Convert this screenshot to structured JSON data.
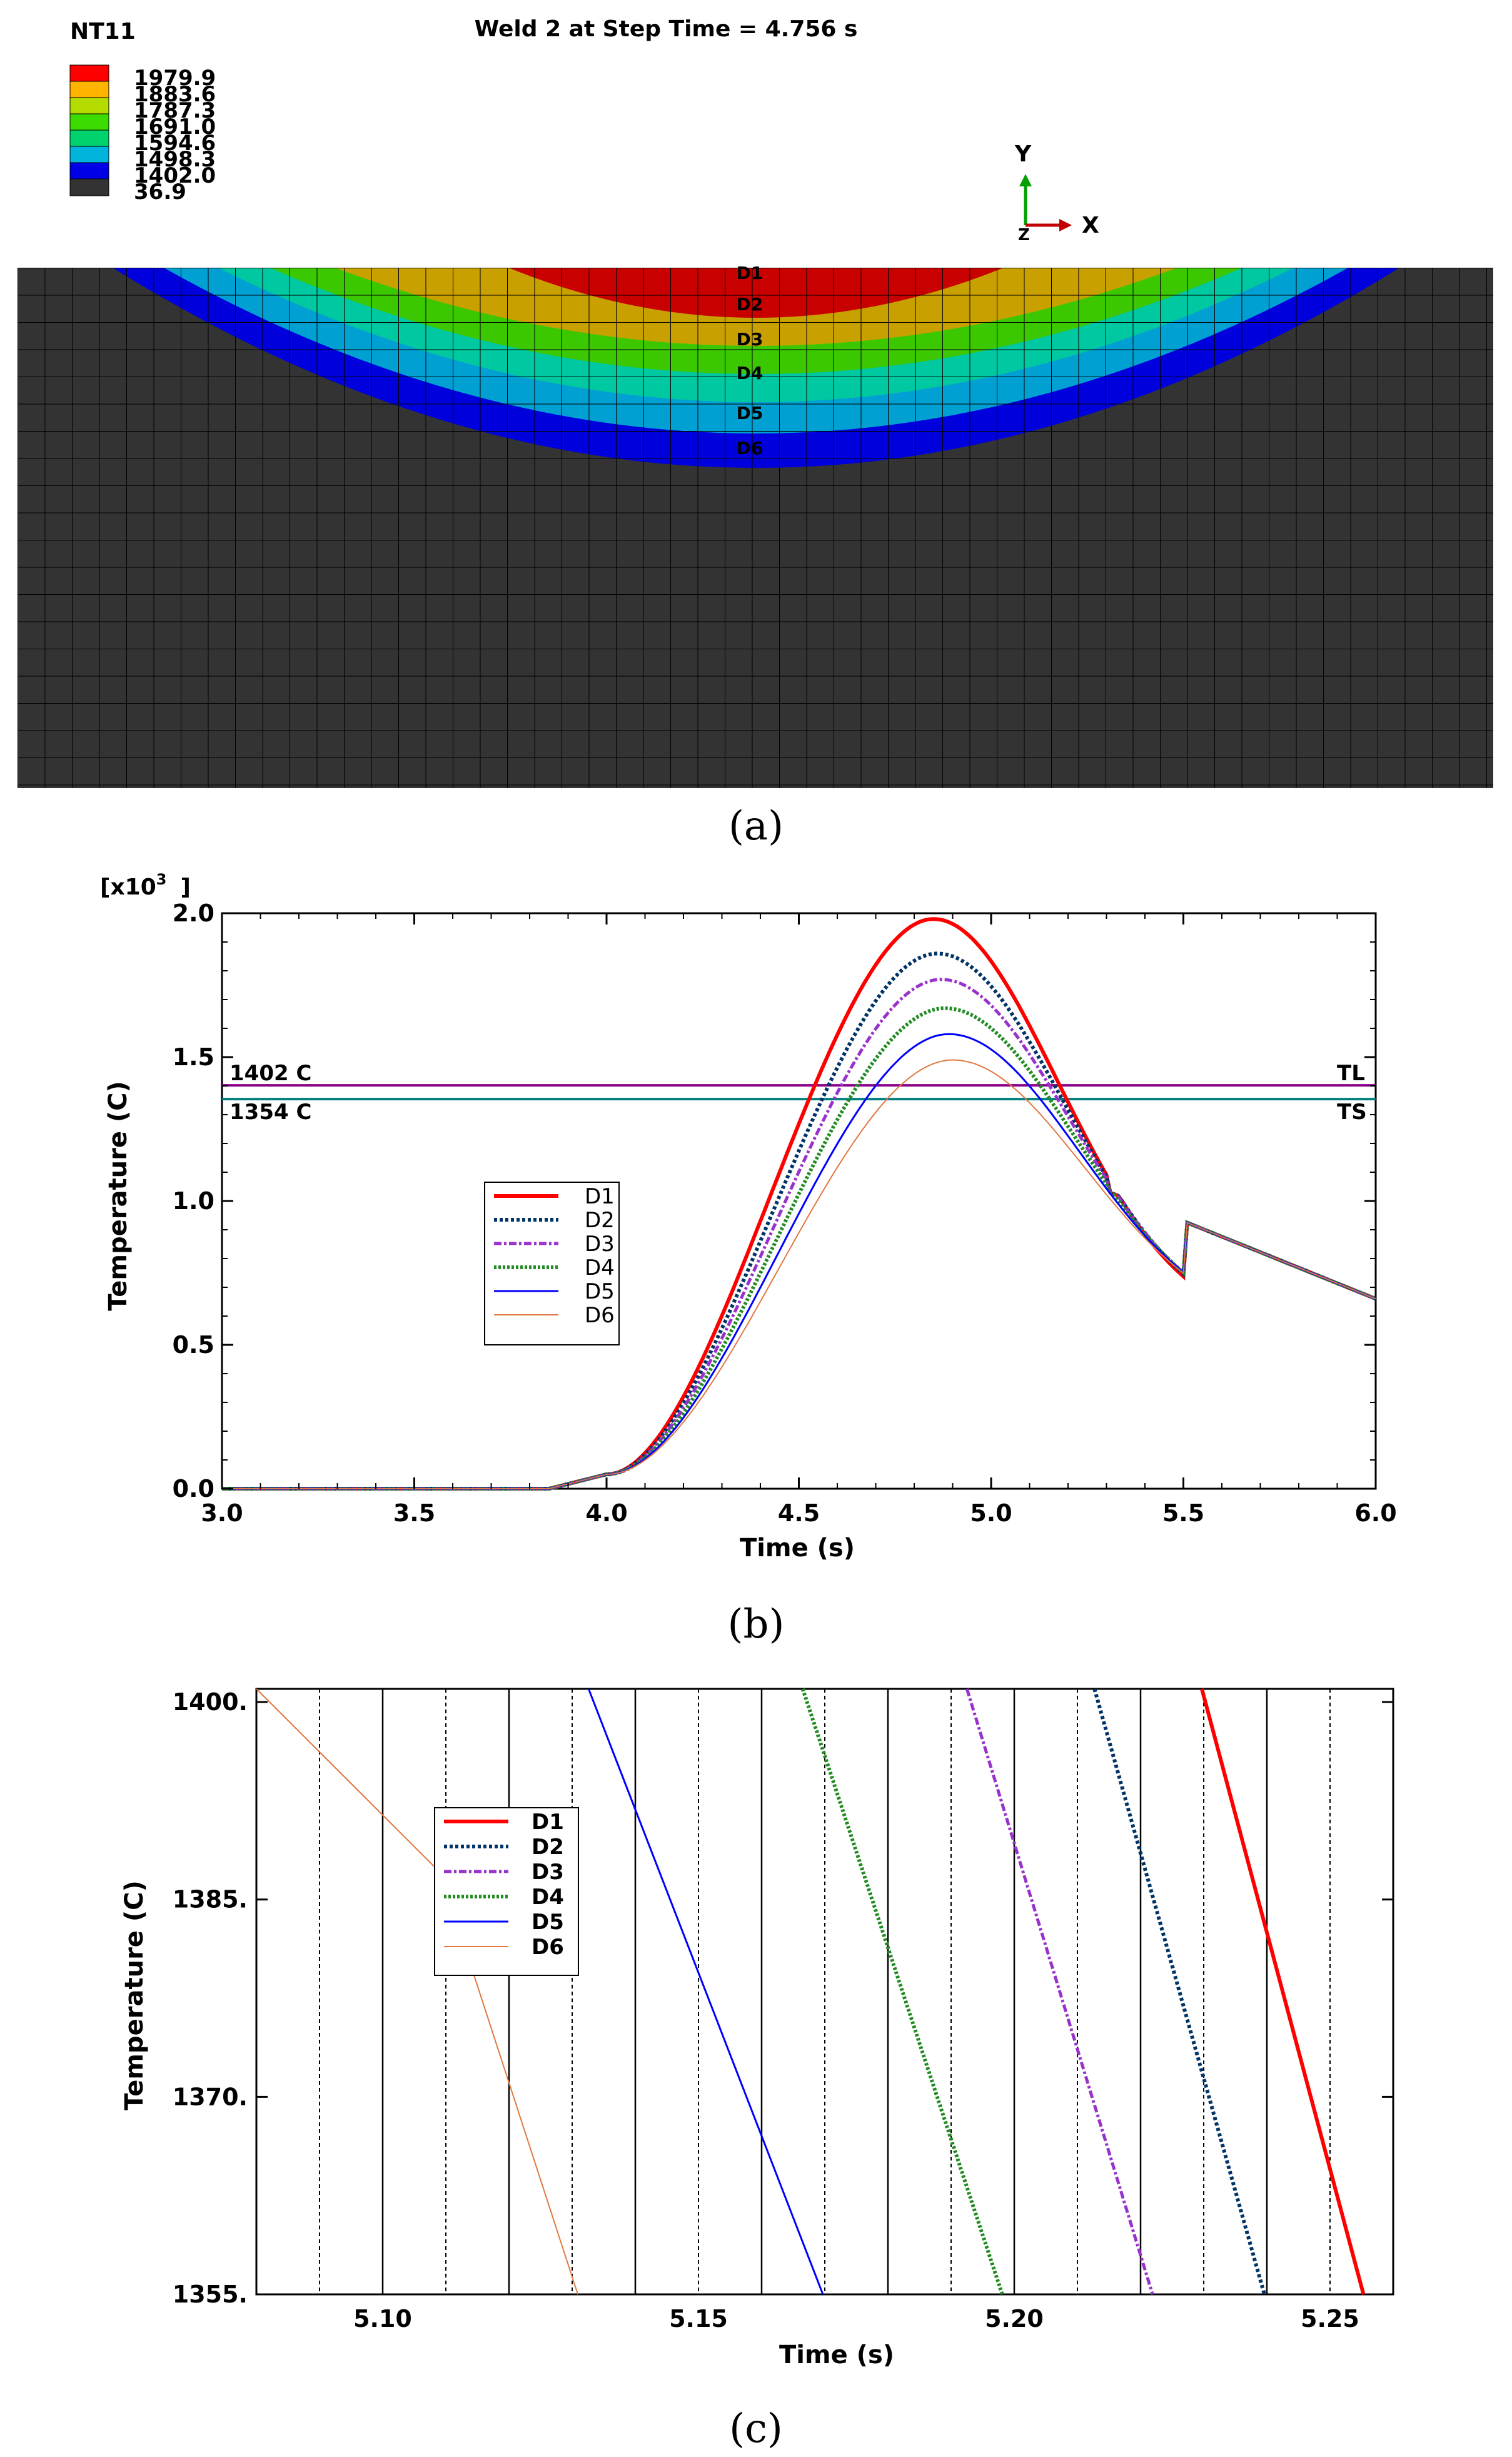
{
  "panel_a": {
    "variable": "NT11",
    "title": "Weld 2 at Step Time = 4.756 s",
    "caption": "(a)",
    "legend": [
      {
        "value": "1979.9",
        "color": "#ff0000"
      },
      {
        "value": "1883.6",
        "color": "#ffb400"
      },
      {
        "value": "1787.3",
        "color": "#b4dc00"
      },
      {
        "value": "1691.0",
        "color": "#3cdc00"
      },
      {
        "value": "1594.6",
        "color": "#00d26e"
      },
      {
        "value": "1498.3",
        "color": "#00b4dc"
      },
      {
        "value": "1402.0",
        "color": "#0000e6"
      },
      {
        "value": "36.9",
        "color": "#333333"
      }
    ],
    "axes": {
      "y": "Y",
      "x": "X",
      "z": "Z"
    },
    "depth_labels": [
      "D1",
      "D2",
      "D3",
      "D4",
      "D5",
      "D6"
    ],
    "band_colors": [
      "#c80000",
      "#c8a000",
      "#3cc800",
      "#00c8a0",
      "#00a0d2",
      "#0000dc"
    ],
    "mesh_color": "#333333"
  },
  "panel_b": {
    "caption": "(b)",
    "multiplier": "[x10",
    "multiplier_exp": "3",
    "multiplier_close": "]",
    "chart_data": {
      "type": "line",
      "xlabel": "Time (s)",
      "ylabel": "Temperature (C)",
      "xlim": [
        3.0,
        6.0
      ],
      "ylim": [
        0.0,
        2.0
      ],
      "xticks": [
        "3.0",
        "3.5",
        "4.0",
        "4.5",
        "5.0",
        "5.5",
        "6.0"
      ],
      "yticks": [
        "0.0",
        "0.5",
        "1.0",
        "1.5",
        "2.0"
      ],
      "hlines": [
        {
          "value": 1.402,
          "label_left": "1402 C",
          "label_right": "TL",
          "color": "#8b008b"
        },
        {
          "value": 1.354,
          "label_left": "1354 C",
          "label_right": "TS",
          "color": "#008080"
        }
      ],
      "series": [
        {
          "name": "D1",
          "color": "#ff0000",
          "peak": 1.98,
          "tpeak": 4.85,
          "width": 0.33,
          "dash": "",
          "stroke": 6
        },
        {
          "name": "D2",
          "color": "#003366",
          "peak": 1.86,
          "tpeak": 4.86,
          "width": 0.34,
          "dash": "5 4",
          "stroke": 6
        },
        {
          "name": "D3",
          "color": "#9932cc",
          "peak": 1.77,
          "tpeak": 4.87,
          "width": 0.345,
          "dash": "12 4 4 4",
          "stroke": 5
        },
        {
          "name": "D4",
          "color": "#228b22",
          "peak": 1.67,
          "tpeak": 4.88,
          "width": 0.35,
          "dash": "4 3",
          "stroke": 6
        },
        {
          "name": "D5",
          "color": "#0000ff",
          "peak": 1.58,
          "tpeak": 4.89,
          "width": 0.355,
          "dash": "",
          "stroke": 3
        },
        {
          "name": "D6",
          "color": "#e07840",
          "peak": 1.49,
          "tpeak": 4.9,
          "width": 0.36,
          "dash": "",
          "stroke": 2
        }
      ]
    }
  },
  "panel_c": {
    "caption": "(c)",
    "chart_data": {
      "type": "line",
      "xlabel": "Time (s)",
      "ylabel": "Temperature (C)",
      "xlim": [
        5.08,
        5.26
      ],
      "ylim": [
        1355,
        1401
      ],
      "xticks": [
        "5.10",
        "5.15",
        "5.20",
        "5.25"
      ],
      "yticks": [
        "1400.",
        "1385.",
        "1370.",
        "1355."
      ],
      "series": [
        {
          "name": "D1",
          "color": "#ff0000",
          "points": [
            [
              5.2297,
              1401
            ],
            [
              5.2553,
              1355
            ]
          ],
          "dash": "",
          "stroke": 6
        },
        {
          "name": "D2",
          "color": "#003366",
          "points": [
            [
              5.2127,
              1401
            ],
            [
              5.2396,
              1355
            ]
          ],
          "dash": "5 4",
          "stroke": 6
        },
        {
          "name": "D3",
          "color": "#9932cc",
          "points": [
            [
              5.1925,
              1401
            ],
            [
              5.2219,
              1355
            ]
          ],
          "dash": "12 4 4 4",
          "stroke": 5
        },
        {
          "name": "D4",
          "color": "#228b22",
          "points": [
            [
              5.1665,
              1401
            ],
            [
              5.1981,
              1355
            ]
          ],
          "dash": "4 3",
          "stroke": 6
        },
        {
          "name": "D5",
          "color": "#0000ff",
          "points": [
            [
              5.1326,
              1401
            ],
            [
              5.1697,
              1355
            ]
          ],
          "dash": "",
          "stroke": 3
        },
        {
          "name": "D6",
          "color": "#e07840",
          "points": [
            [
              5.08,
              1401
            ],
            [
              5.1092,
              1387
            ],
            [
              5.1309,
              1355
            ]
          ],
          "dash": "",
          "stroke": 2
        }
      ]
    }
  }
}
